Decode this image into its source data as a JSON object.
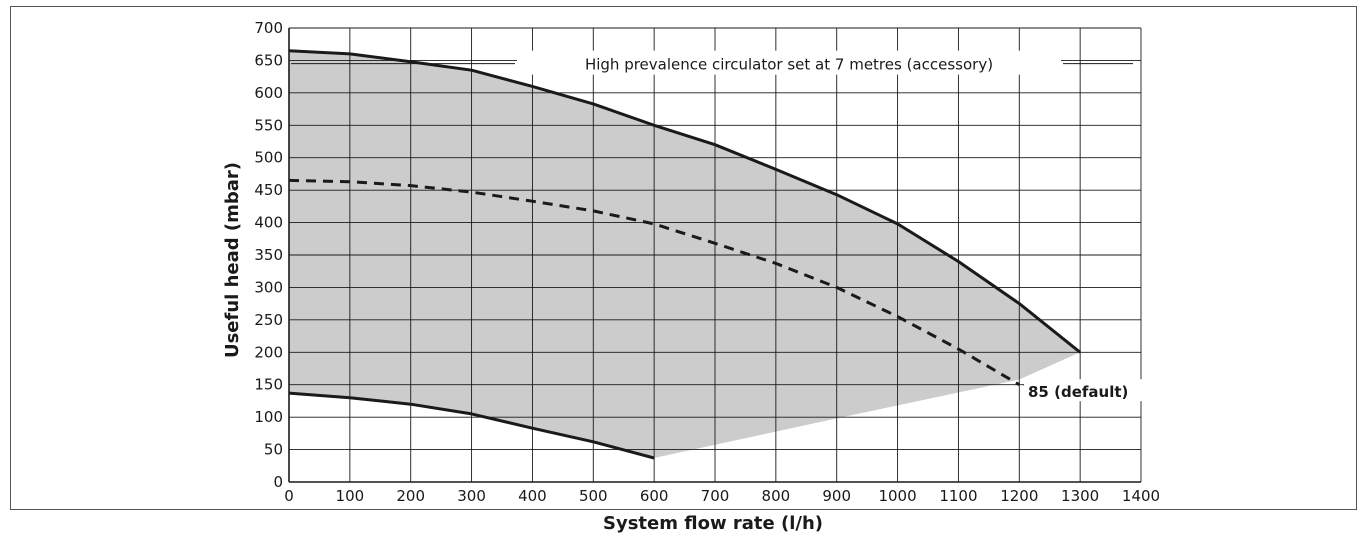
{
  "chart_data": {
    "type": "line",
    "title": "",
    "xlabel": "System flow rate (l/h)",
    "ylabel": "Useful head (mbar)",
    "xlim": [
      0,
      1400
    ],
    "ylim": [
      0,
      700
    ],
    "xticks": [
      "0",
      "100",
      "200",
      "300",
      "400",
      "500",
      "600",
      "700",
      "800",
      "900",
      "1000",
      "1100",
      "1200",
      "1300",
      "1400"
    ],
    "yticks": [
      "0",
      "50",
      "100",
      "150",
      "200",
      "250",
      "300",
      "350",
      "400",
      "450",
      "500",
      "550",
      "600",
      "650",
      "700"
    ],
    "grid": true,
    "colors": {
      "shade": "#cccccc",
      "line": "#1a1a1a",
      "grid": "#1a1a1a"
    },
    "series": [
      {
        "label": "High prevalence circulator set at 7 metres (accessory)",
        "style": "solid",
        "x": [
          0,
          100,
          200,
          300,
          400,
          500,
          600,
          700,
          800,
          900,
          1000,
          1100,
          1200,
          1300
        ],
        "y": [
          665,
          660,
          648,
          635,
          610,
          583,
          550,
          520,
          482,
          443,
          398,
          340,
          275,
          200
        ]
      },
      {
        "label": "85 (default)",
        "style": "dashed",
        "x": [
          0,
          100,
          200,
          300,
          400,
          500,
          600,
          700,
          800,
          900,
          1000,
          1100,
          1200
        ],
        "y": [
          465,
          463,
          457,
          447,
          433,
          418,
          398,
          368,
          337,
          300,
          255,
          205,
          150
        ]
      },
      {
        "label": "",
        "style": "solid",
        "x": [
          0,
          100,
          200,
          300,
          400,
          500,
          600
        ],
        "y": [
          137,
          130,
          120,
          105,
          83,
          62,
          37
        ]
      }
    ],
    "shaded_region_lower_bound": {
      "x": [
        600,
        900,
        1200,
        1300
      ],
      "y": [
        37,
        98,
        158,
        200
      ]
    },
    "annotations": [
      {
        "text": "High prevalence circulator set at 7 metres (accessory)",
        "x": 650,
        "y": 645,
        "target_x": 1300
      },
      {
        "text": "85 (default)",
        "x": 1210,
        "y": 140,
        "target_x": 1210
      }
    ]
  }
}
